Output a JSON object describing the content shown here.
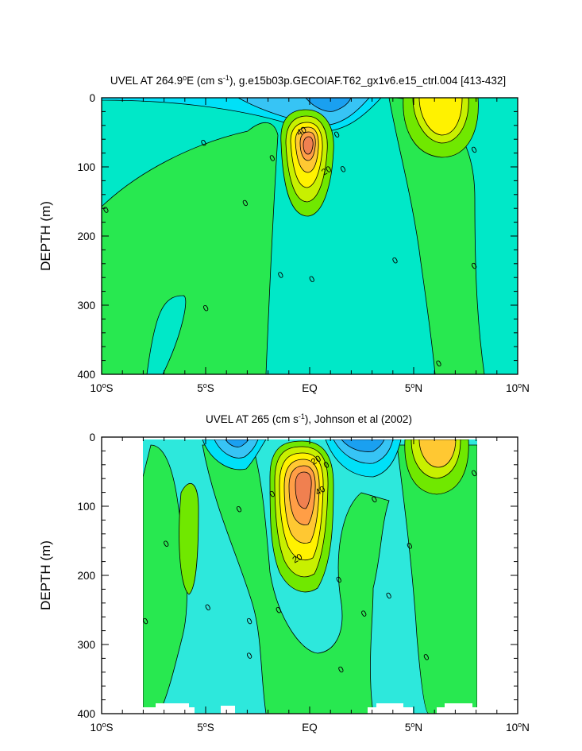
{
  "colors": {
    "cyan_light": "#2de8dc",
    "cyan": "#00e0f8",
    "sky": "#37c4f5",
    "blue": "#1aa0f0",
    "teal": "#00e8c8",
    "green": "#28e850",
    "lime": "#70e800",
    "yellow_green": "#c8f000",
    "yellow": "#fff200",
    "gold": "#ffc832",
    "orange": "#ff9e46",
    "dark_orange": "#f08050"
  },
  "chart_data": [
    {
      "type": "heatmap",
      "title_parts": [
        "UVEL AT 264.9",
        "o",
        "E (cm s",
        "-1",
        "), g.e15b03p.GECOIAF.T62_gx1v6.e15_ctrl.004 [413-432]"
      ],
      "variable": "UVEL",
      "units": "cm s-1",
      "ylabel": "DEPTH (m)",
      "xlim": [
        -10,
        10
      ],
      "ylim": [
        400,
        0
      ],
      "x_ticks": [
        {
          "value": -10,
          "label": "10",
          "deg": "o",
          "suffix": "S"
        },
        {
          "value": -5,
          "label": "5",
          "deg": "o",
          "suffix": "S"
        },
        {
          "value": 0,
          "label": "EQ",
          "deg": "",
          "suffix": ""
        },
        {
          "value": 5,
          "label": "5",
          "deg": "o",
          "suffix": "N"
        },
        {
          "value": 10,
          "label": "10",
          "deg": "o",
          "suffix": "N"
        }
      ],
      "y_ticks": [
        {
          "value": 0,
          "label": "0"
        },
        {
          "value": 100,
          "label": "100"
        },
        {
          "value": 200,
          "label": "200"
        },
        {
          "value": 300,
          "label": "300"
        },
        {
          "value": 400,
          "label": "400"
        }
      ],
      "contour_interval": 10,
      "contour_labels": [
        {
          "text": "0",
          "lat": -9.8,
          "depth": 162
        },
        {
          "text": "0",
          "lat": -5.1,
          "depth": 65
        },
        {
          "text": "0",
          "lat": -3.1,
          "depth": 152
        },
        {
          "text": "0",
          "lat": -1.8,
          "depth": 87
        },
        {
          "text": "40",
          "lat": -0.4,
          "depth": 48
        },
        {
          "text": "20",
          "lat": 0.8,
          "depth": 105
        },
        {
          "text": "0",
          "lat": 1.3,
          "depth": 53
        },
        {
          "text": "0",
          "lat": 1.6,
          "depth": 103
        },
        {
          "text": "0",
          "lat": -1.4,
          "depth": 256
        },
        {
          "text": "0",
          "lat": 0.1,
          "depth": 262
        },
        {
          "text": "0",
          "lat": -5.0,
          "depth": 304
        },
        {
          "text": "0",
          "lat": 4.1,
          "depth": 235
        },
        {
          "text": "0",
          "lat": 7.9,
          "depth": 75
        },
        {
          "text": "0",
          "lat": 7.9,
          "depth": 243
        },
        {
          "text": "0",
          "lat": 6.2,
          "depth": 384
        }
      ]
    },
    {
      "type": "heatmap",
      "title_parts": [
        "UVEL AT 265 (cm s",
        "-1",
        "), Johnson et al (2002)"
      ],
      "variable": "UVEL",
      "units": "cm s-1",
      "ylabel": "DEPTH (m)",
      "xlim": [
        -10,
        10
      ],
      "ylim": [
        400,
        0
      ],
      "data_lat_range": [
        -8,
        8
      ],
      "x_ticks": [
        {
          "value": -10,
          "label": "10",
          "deg": "o",
          "suffix": "S"
        },
        {
          "value": -5,
          "label": "5",
          "deg": "o",
          "suffix": "S"
        },
        {
          "value": 0,
          "label": "EQ",
          "deg": "",
          "suffix": ""
        },
        {
          "value": 5,
          "label": "5",
          "deg": "o",
          "suffix": "N"
        },
        {
          "value": 10,
          "label": "10",
          "deg": "o",
          "suffix": "N"
        }
      ],
      "y_ticks": [
        {
          "value": 0,
          "label": "0"
        },
        {
          "value": 100,
          "label": "100"
        },
        {
          "value": 200,
          "label": "200"
        },
        {
          "value": 300,
          "label": "300"
        },
        {
          "value": 400,
          "label": "400"
        }
      ],
      "contour_interval": 10,
      "contour_labels": [
        {
          "text": "20",
          "lat": 0.3,
          "depth": 33
        },
        {
          "text": "0",
          "lat": 0.8,
          "depth": 40
        },
        {
          "text": "40",
          "lat": 0.5,
          "depth": 77
        },
        {
          "text": "20",
          "lat": -0.6,
          "depth": 175
        },
        {
          "text": "0",
          "lat": -3.4,
          "depth": 104
        },
        {
          "text": "0",
          "lat": -1.8,
          "depth": 82
        },
        {
          "text": "0",
          "lat": -6.9,
          "depth": 154
        },
        {
          "text": "0",
          "lat": -7.9,
          "depth": 266
        },
        {
          "text": "0",
          "lat": -4.9,
          "depth": 246
        },
        {
          "text": "0",
          "lat": -2.9,
          "depth": 266
        },
        {
          "text": "0",
          "lat": -1.5,
          "depth": 250
        },
        {
          "text": "0",
          "lat": -2.9,
          "depth": 316
        },
        {
          "text": "0",
          "lat": 1.4,
          "depth": 206
        },
        {
          "text": "0",
          "lat": 1.5,
          "depth": 336
        },
        {
          "text": "0",
          "lat": 3.1,
          "depth": 90
        },
        {
          "text": "0",
          "lat": 2.6,
          "depth": 255
        },
        {
          "text": "0",
          "lat": 3.8,
          "depth": 229
        },
        {
          "text": "0",
          "lat": 4.8,
          "depth": 157
        },
        {
          "text": "0",
          "lat": 5.6,
          "depth": 318
        },
        {
          "text": "0",
          "lat": 7.9,
          "depth": 52
        }
      ]
    }
  ]
}
